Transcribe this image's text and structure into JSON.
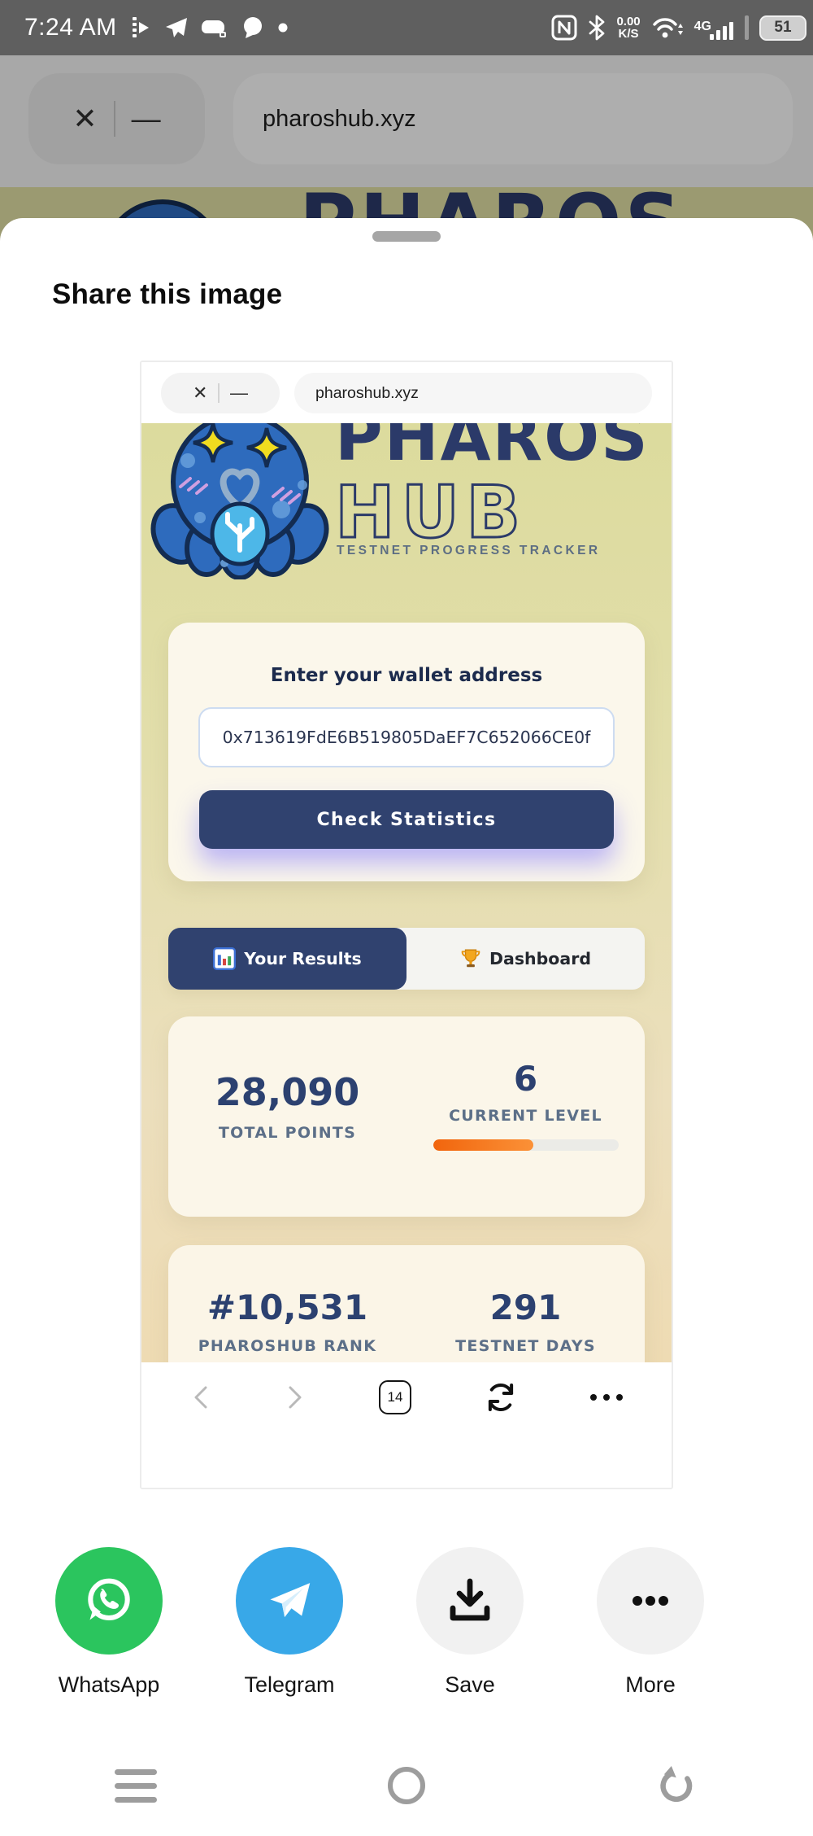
{
  "status_bar": {
    "time": "7:24 AM",
    "network_speed": "0.00",
    "network_speed_unit": "K/S",
    "network_type": "4G",
    "battery_level": "51",
    "left_icon_names": [
      "media-app-icon",
      "telegram-status-icon",
      "game-app-icon",
      "chat-bubble-icon",
      "notification-dot"
    ],
    "right_icon_names": [
      "nfc-icon",
      "bluetooth-icon",
      "wifi-icon",
      "signal-bars-icon",
      "battery-icon"
    ]
  },
  "browser": {
    "close_glyph": "✕",
    "minimize_glyph": "—",
    "url": "pharoshub.xyz"
  },
  "share_sheet": {
    "title": "Share this image"
  },
  "preview": {
    "browser_url": "pharoshub.xyz",
    "close_glyph": "✕",
    "minimize_glyph": "—",
    "site": {
      "logo_line1": "PHAROS",
      "logo_line2": "HUB",
      "tagline": "TESTNET PROGRESS TRACKER",
      "wallet_label": "Enter your wallet address",
      "wallet_address": "0x713619FdE6B519805DaEF7C652066CE0f",
      "check_button": "Check Statistics",
      "tabs": {
        "active": "Your Results",
        "inactive": "Dashboard"
      },
      "stats": {
        "total_points": "28,090",
        "total_points_label": "TOTAL POINTS",
        "current_level": "6",
        "current_level_label": "CURRENT LEVEL",
        "level_progress_pct": 54,
        "rank": "#10,531",
        "rank_label": "PHAROSHUB RANK",
        "testnet_days": "291",
        "testnet_days_label": "TESTNET DAYS"
      }
    },
    "toolbar": {
      "tab_count": "14"
    }
  },
  "share_options": [
    {
      "label": "WhatsApp"
    },
    {
      "label": "Telegram"
    },
    {
      "label": "Save"
    },
    {
      "label": "More"
    }
  ],
  "colors": {
    "navy": "#30426f",
    "logo_navy": "#2b3a69",
    "khaki_top": "#dcdb9d",
    "cream_card": "#fbf7eb",
    "orange_progress": "#f1650d",
    "whatsapp_green": "#2bc55e",
    "telegram_blue": "#38a8e8",
    "label_slate": "#5c6f88"
  }
}
